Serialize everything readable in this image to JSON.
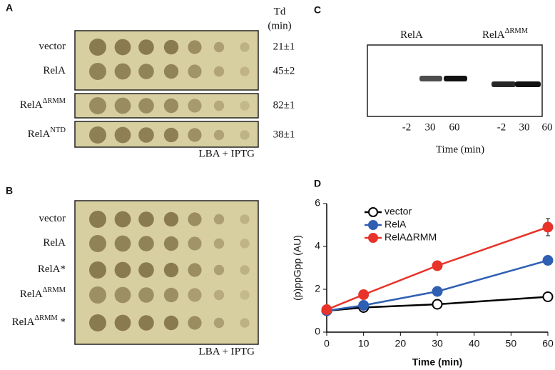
{
  "panel_a": {
    "label": "A",
    "td_header": [
      "Td",
      "(min)"
    ],
    "rows": [
      {
        "name": {
          "text": "vector"
        },
        "td": "21±1"
      },
      {
        "name": {
          "text": "RelA"
        },
        "td": "45±2"
      },
      {
        "name": {
          "text": "RelA",
          "sup": "ΔRMM"
        },
        "td": "82±1"
      },
      {
        "name": {
          "text": "RelA",
          "sup": "NTD"
        },
        "td": "38±1"
      }
    ],
    "medium": "LBA + IPTG"
  },
  "panel_b": {
    "label": "B",
    "rows": [
      {
        "text": "vector"
      },
      {
        "text": "RelA"
      },
      {
        "text": "RelA*"
      },
      {
        "text": "RelA",
        "sup": "ΔRMM"
      },
      {
        "text": "RelA",
        "sup": "ΔRMM",
        "after": " *"
      }
    ],
    "medium": "LBA + IPTG"
  },
  "panel_c": {
    "label": "C",
    "groups": [
      {
        "name": {
          "text": "RelA"
        },
        "lanes": [
          "-2",
          "30",
          "60"
        ]
      },
      {
        "name": {
          "text": "RelA",
          "sup": "ΔRMM"
        },
        "lanes": [
          "-2",
          "30",
          "60"
        ]
      }
    ],
    "xlabel": "Time (min)"
  },
  "chart_data": {
    "type": "line",
    "panel_label": "D",
    "x": [
      0,
      10,
      30,
      60
    ],
    "xlim": [
      0,
      60
    ],
    "xticks": [
      0,
      10,
      20,
      30,
      40,
      50,
      60
    ],
    "ylim": [
      0,
      6
    ],
    "yticks": [
      0,
      2,
      4,
      6
    ],
    "xlabel": "Time (min)",
    "ylabel": "(p)ppGpp (AU)",
    "legend": "upper left",
    "series": [
      {
        "name": "vector",
        "color": "#000000",
        "marker_fill": "#ffffff",
        "values": [
          1.0,
          1.15,
          1.3,
          1.65
        ]
      },
      {
        "name": "RelA",
        "color": "#2f5fb3",
        "marker_fill": "#2f5fb3",
        "values": [
          1.0,
          1.25,
          1.9,
          3.35
        ]
      },
      {
        "name": "RelAΔRMM",
        "color": "#e8332a",
        "marker_fill": "#e8332a",
        "values": [
          1.05,
          1.75,
          3.1,
          4.9
        ],
        "errors": [
          null,
          null,
          null,
          0.4
        ]
      }
    ]
  }
}
